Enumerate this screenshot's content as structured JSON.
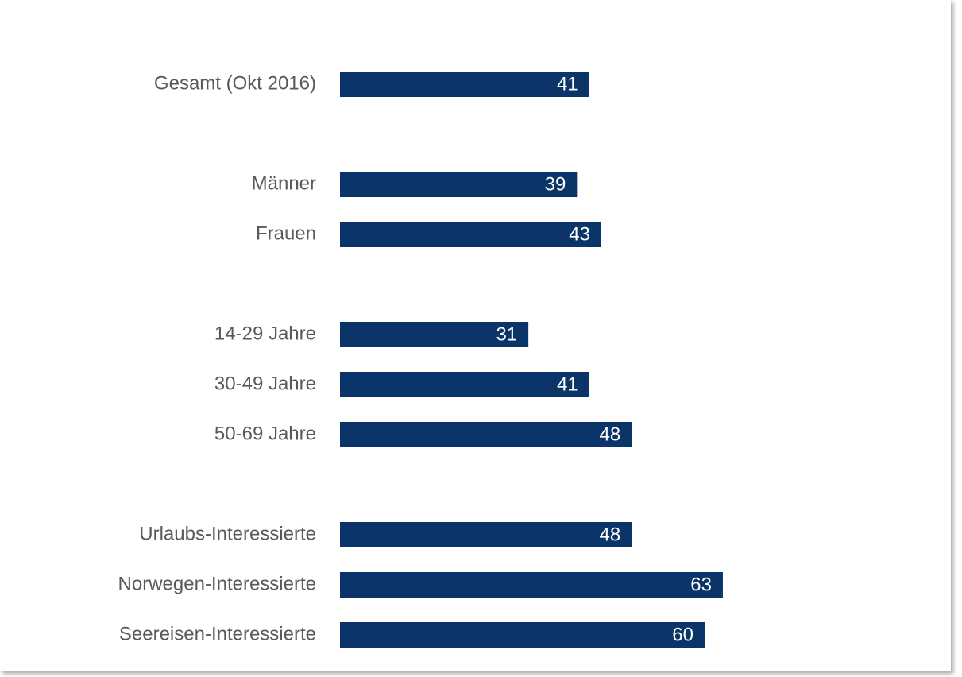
{
  "chart_data": {
    "type": "bar",
    "orientation": "horizontal",
    "categories": [
      "Gesamt (Okt 2016)",
      "Männer",
      "Frauen",
      "14-29 Jahre",
      "30-49 Jahre",
      "50-69 Jahre",
      "Urlaubs-Interessierte",
      "Norwegen-Interessierte",
      "Seereisen-Interessierte"
    ],
    "values": [
      41,
      39,
      43,
      31,
      41,
      48,
      48,
      63,
      60
    ],
    "color": "#0b3468"
  }
}
